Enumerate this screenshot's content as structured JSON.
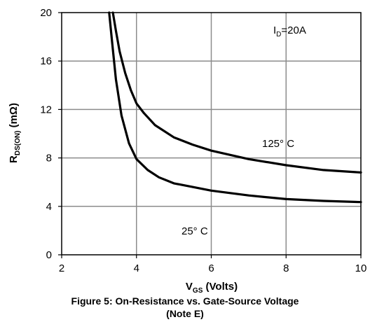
{
  "chart_data": {
    "type": "line",
    "xlabel": {
      "main": "V",
      "sub": "GS",
      "rest": " (Volts)"
    },
    "ylabel": {
      "main": "R",
      "sub": "DS(ON)",
      "rest": " (mΩ)"
    },
    "xlim": [
      2,
      10
    ],
    "ylim": [
      0,
      20
    ],
    "x_ticks": [
      2,
      4,
      6,
      8,
      10
    ],
    "y_ticks": [
      0,
      4,
      8,
      12,
      16,
      20
    ],
    "grid": true,
    "annotation": {
      "main": "I",
      "sub": "D",
      "rest": "=20A"
    },
    "series": [
      {
        "name": "125° C",
        "x": [
          3.37,
          3.45,
          3.55,
          3.7,
          3.85,
          4.0,
          4.2,
          4.5,
          5.0,
          5.5,
          6.0,
          7.0,
          8.0,
          9.0,
          10.0
        ],
        "y": [
          20.0,
          18.5,
          16.8,
          15.0,
          13.6,
          12.5,
          11.7,
          10.7,
          9.7,
          9.1,
          8.6,
          7.9,
          7.4,
          7.0,
          6.8
        ]
      },
      {
        "name": "25° C",
        "x": [
          3.27,
          3.35,
          3.45,
          3.6,
          3.8,
          4.0,
          4.3,
          4.6,
          5.0,
          5.5,
          6.0,
          7.0,
          8.0,
          9.0,
          10.0
        ],
        "y": [
          20.0,
          17.5,
          14.5,
          11.5,
          9.2,
          7.9,
          7.0,
          6.4,
          5.9,
          5.6,
          5.3,
          4.9,
          4.6,
          4.45,
          4.35
        ]
      }
    ]
  },
  "caption": {
    "line1": "Figure 5: On-Resistance vs. Gate-Source Voltage",
    "line2": "(Note E)"
  }
}
